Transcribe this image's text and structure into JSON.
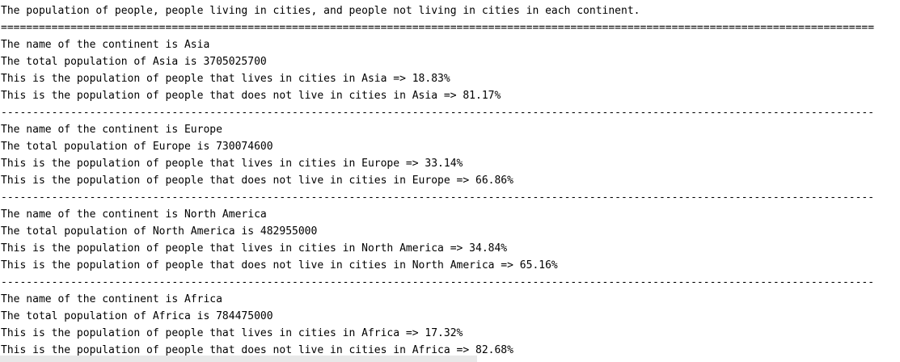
{
  "header": "The population of people, people living in cities, and people not living in cities in each continent.",
  "separator": "==========================================================================================================================================",
  "divider": "------------------------------------------------------------------------------------------------------------------------------------------",
  "blocks": [
    {
      "name_line": "The name of the continent is Asia",
      "total_line": "The total population of Asia is 3705025700",
      "cities_line": "This is the population of people that lives in cities in Asia => 18.83%",
      "non_cities_line": "This is the population of people that does not live in cities in Asia => 81.17%"
    },
    {
      "name_line": "The name of the continent is Europe",
      "total_line": "The total population of Europe is 730074600",
      "cities_line": "This is the population of people that lives in cities in Europe => 33.14%",
      "non_cities_line": "This is the population of people that does not live in cities in Europe => 66.86%"
    },
    {
      "name_line": "The name of the continent is North America",
      "total_line": "The total population of North America is 482955000",
      "cities_line": "This is the population of people that lives in cities in North America => 34.84%",
      "non_cities_line": "This is the population of people that does not live in cities in North America => 65.16%"
    },
    {
      "name_line": "The name of the continent is Africa",
      "total_line": "The total population of Africa is 784475000",
      "cities_line": "This is the population of people that lives in cities in Africa => 17.32%",
      "non_cities_line": "This is the population of people that does not live in cities in Africa => 82.68%"
    }
  ]
}
